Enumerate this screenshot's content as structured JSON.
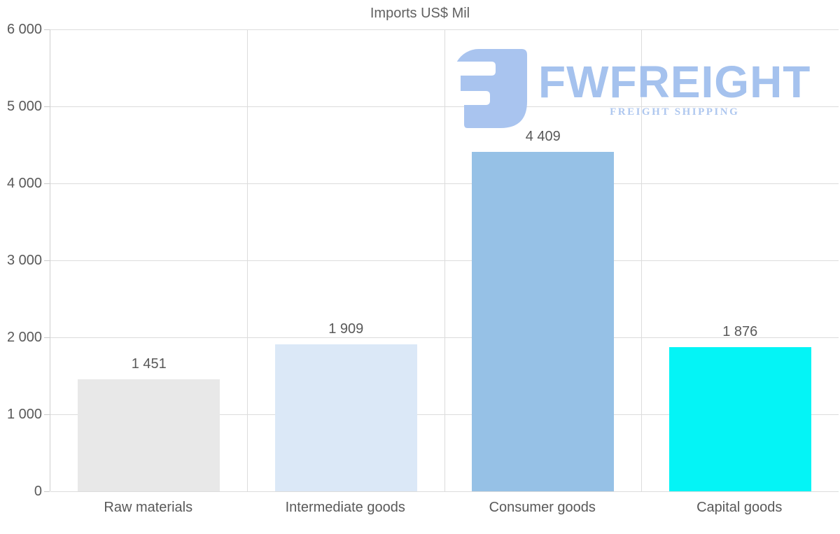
{
  "chart_data": {
    "type": "bar",
    "title": "Imports US$ Mil",
    "categories": [
      "Raw materials",
      "Intermediate goods",
      "Consumer goods",
      "Capital goods"
    ],
    "values": [
      1451,
      1909,
      4409,
      1876
    ],
    "value_labels": [
      "1 451",
      "1 909",
      "4 409",
      "1 876"
    ],
    "bar_colors": [
      "#e8e8e8",
      "#dbe8f7",
      "#96c1e6",
      "#04f4f6"
    ],
    "xlabel": "",
    "ylabel": "",
    "ylim": [
      0,
      6000
    ],
    "yticks": [
      0,
      1000,
      2000,
      3000,
      4000,
      5000,
      6000
    ],
    "ytick_labels": [
      "0",
      "1 000",
      "2 000",
      "3 000",
      "4 000",
      "5 000",
      "6 000"
    ],
    "grid": true,
    "legend": "none",
    "background": "#ffffff"
  },
  "watermark": {
    "wordmark": "FWFREIGHT",
    "subtitle": "FREIGHT SHIPPING",
    "icon": "fwfreight-logo-icon",
    "icon_color": "#a9c4ef",
    "wordmark_color": "#a5c2ee",
    "subtitle_color": "#aec7ef"
  },
  "colors": {
    "text": "#595959",
    "title_text": "#616161",
    "gridline": "#dcdcdc",
    "axis_line": "#cfcfcf"
  }
}
